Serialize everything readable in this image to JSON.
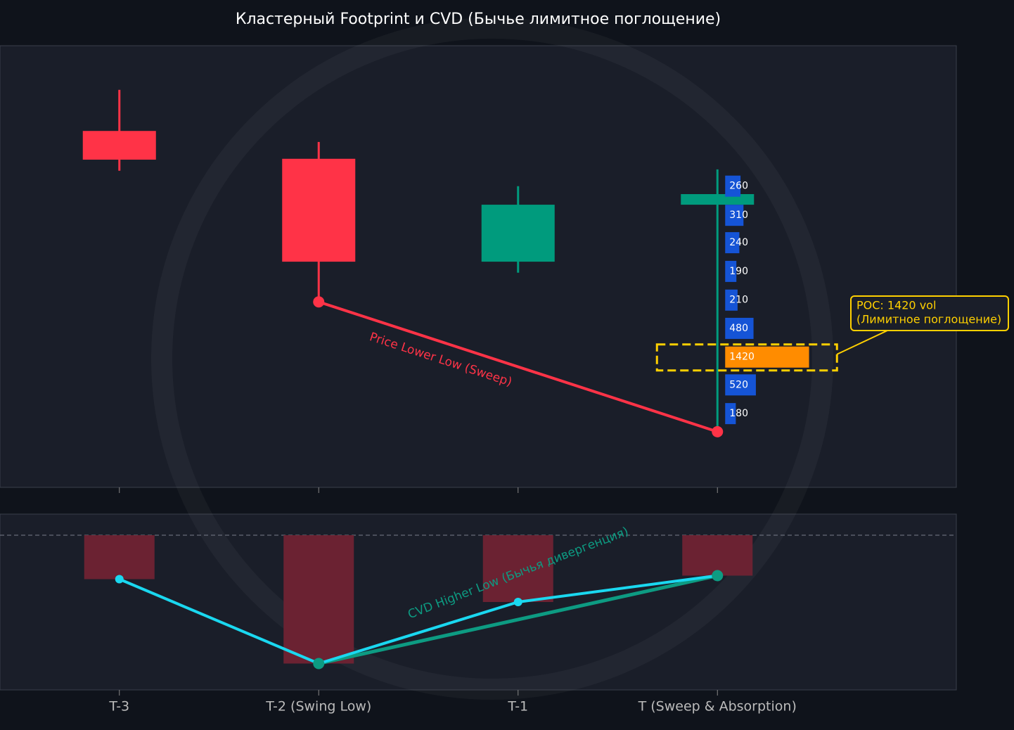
{
  "chart_data": [
    {
      "type": "candlestick",
      "title": "Кластерный Footprint и CVD (Бычье лимитное поглощение)",
      "open": [
        80.7,
        74.4,
        51.1,
        64.0
      ],
      "high": [
        90.0,
        78.2,
        68.2,
        72.0
      ],
      "low": [
        71.7,
        42.0,
        48.6,
        12.6
      ],
      "close": [
        74.2,
        51.1,
        64.0,
        66.4
      ],
      "up_color": "#009b7d",
      "down_color": "#ff3347",
      "ylim": [
        0,
        100
      ],
      "footprint": {
        "candle": 3,
        "levels": [
          68.2,
          61.6,
          55.4,
          48.9,
          42.4,
          36.0,
          29.5,
          23.2,
          16.7
        ],
        "volumes": [
          260,
          310,
          240,
          190,
          210,
          480,
          1420,
          520,
          180
        ],
        "color": "#1554d6",
        "poc_color": "#ff8c00",
        "poc_label": [
          "POC: 1420 vol",
          "(Лимитное поглощение)"
        ]
      },
      "trend_line": {
        "points": [
          1,
          3
        ],
        "color": "#ff3347",
        "label": "Price Lower Low (Sweep)"
      }
    },
    {
      "type": "bar",
      "categories": [
        "T-3",
        "T-2 (Swing Low)",
        "T-1",
        "T (Sweep & Absorption)"
      ],
      "values": [
        -25,
        -73,
        -38,
        -23
      ],
      "color": "#6b2232",
      "line_color": "#1ad8f0",
      "ylim": [
        -88,
        12
      ],
      "hline": 0,
      "trend_line": {
        "points": [
          1,
          3
        ],
        "color": "#0d9b82",
        "label": "CVD Higher Low (Бычья дивергенция)"
      }
    }
  ]
}
